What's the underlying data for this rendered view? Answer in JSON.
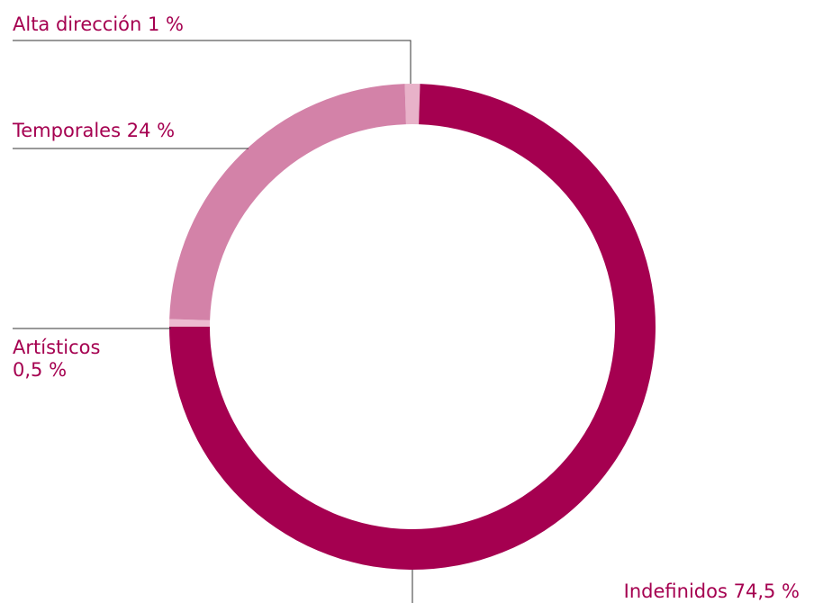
{
  "chart_data": {
    "type": "donut",
    "categories": [
      "Alta dirección",
      "Indefinidos",
      "Artísticos",
      "Temporales"
    ],
    "values": [
      1,
      74.5,
      0.5,
      24
    ],
    "value_labels": [
      "1 %",
      "74,5 %",
      "0,5 %",
      "24 %"
    ],
    "colors": [
      "#e8b2c9",
      "#a50050",
      "#edbbd0",
      "#d382a8"
    ]
  }
}
